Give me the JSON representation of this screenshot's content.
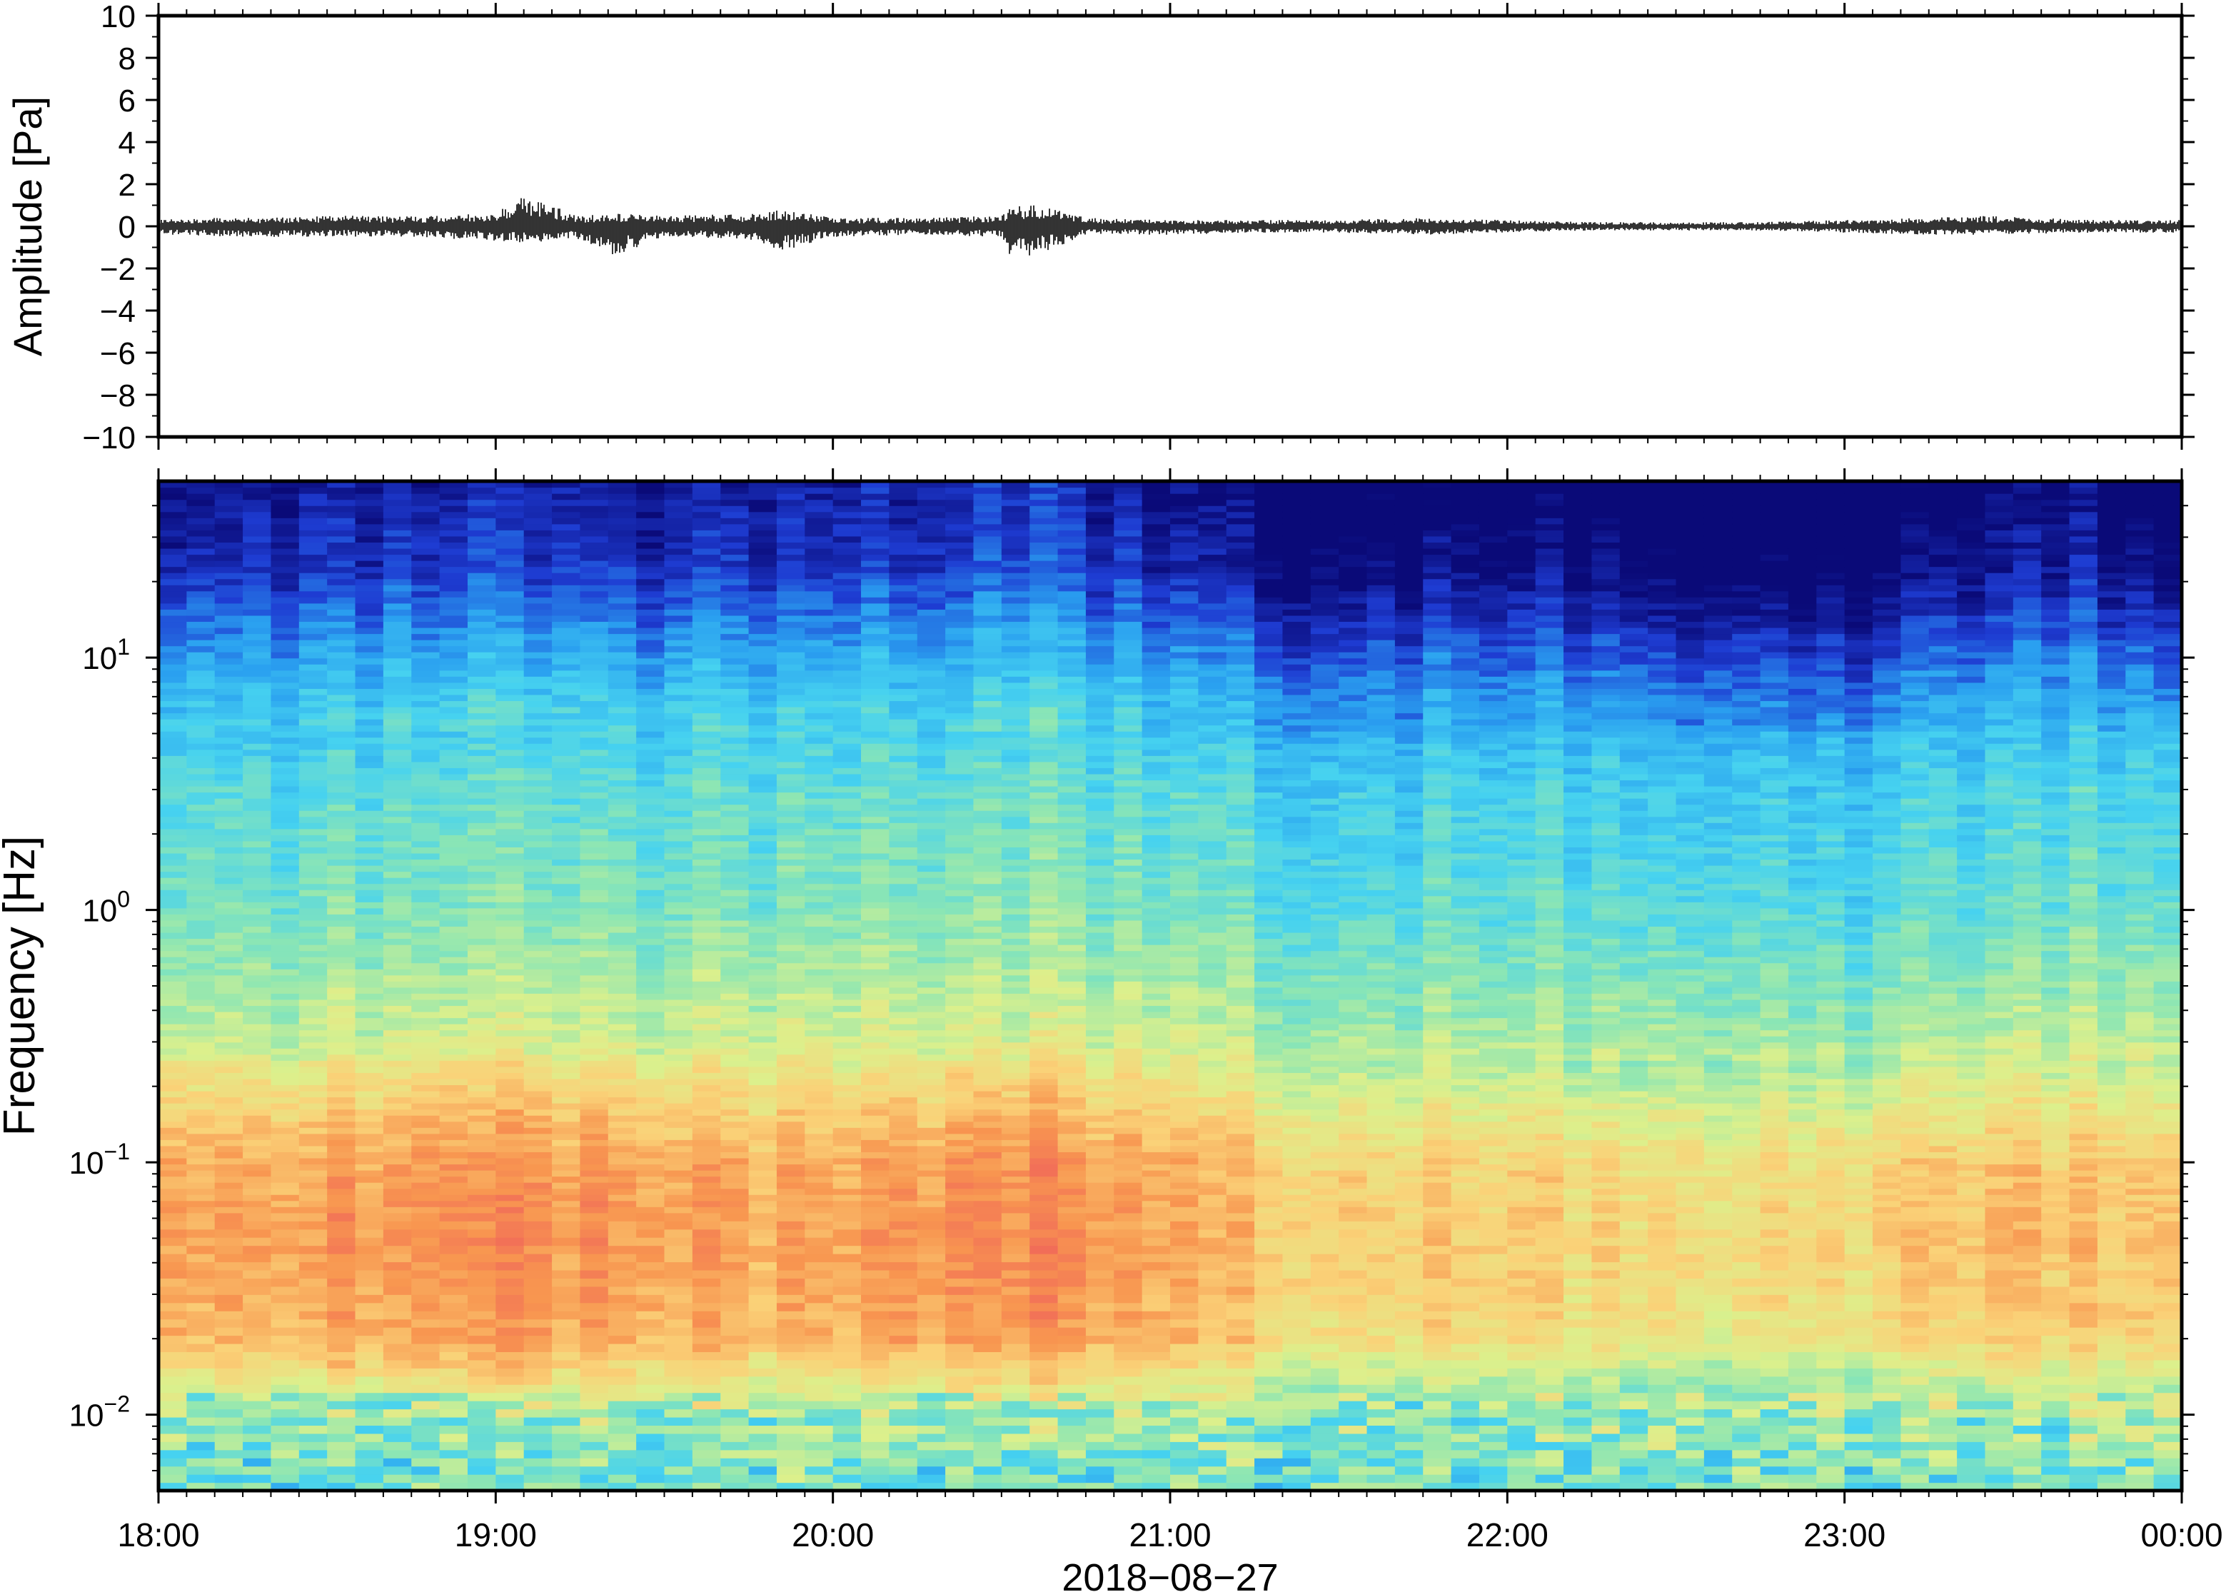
{
  "figure": {
    "date_label": "2018−08−27"
  },
  "chart_data": [
    {
      "type": "line",
      "panel": "waveform",
      "ylabel": "Amplitude [Pa]",
      "ylim": [
        -10,
        10
      ],
      "yticks": [
        -10,
        -8,
        -6,
        -4,
        -2,
        0,
        2,
        4,
        6,
        8,
        10
      ],
      "ytick_labels": [
        "−10",
        "−8",
        "−6",
        "−4",
        "−2",
        "0",
        "2",
        "4",
        "6",
        "8",
        "10"
      ],
      "xlim_hours": [
        18,
        24
      ],
      "trace_color": "#000000",
      "series": [
        {
          "x_hours": [
            18.0,
            18.25,
            18.5,
            18.75,
            19.0,
            19.08,
            19.25,
            19.35,
            19.5,
            19.75,
            19.85,
            20.0,
            20.25,
            20.5,
            20.53,
            20.6,
            20.75,
            21.0,
            21.25,
            21.5,
            21.75,
            22.0,
            22.25,
            22.5,
            22.75,
            23.0,
            23.25,
            23.4,
            23.75,
            24.0
          ],
          "max_pa": [
            0.4,
            0.4,
            0.5,
            0.5,
            0.6,
            1.5,
            0.5,
            0.6,
            0.5,
            0.6,
            0.8,
            0.4,
            0.4,
            0.5,
            0.9,
            1.1,
            0.4,
            0.3,
            0.3,
            0.3,
            0.4,
            0.3,
            0.2,
            0.2,
            0.2,
            0.3,
            0.4,
            0.5,
            0.3,
            0.3
          ],
          "min_pa": [
            -0.4,
            -0.5,
            -0.5,
            -0.5,
            -0.7,
            -0.8,
            -0.6,
            -1.4,
            -0.5,
            -0.6,
            -1.2,
            -0.5,
            -0.4,
            -0.5,
            -1.7,
            -1.4,
            -0.4,
            -0.4,
            -0.3,
            -0.3,
            -0.4,
            -0.3,
            -0.2,
            -0.2,
            -0.2,
            -0.3,
            -0.4,
            -0.4,
            -0.3,
            -0.3
          ]
        }
      ]
    },
    {
      "type": "heatmap",
      "panel": "spectrogram",
      "ylabel": "Frequency [Hz]",
      "yscale": "log",
      "ylim": [
        0.005,
        50
      ],
      "yticks": [
        0.01,
        0.1,
        1,
        10
      ],
      "ytick_base": [
        "10",
        "10",
        "10",
        "10"
      ],
      "ytick_exponents": [
        "−2",
        "−1",
        "0",
        "1"
      ],
      "xlim_hours": [
        18,
        24
      ],
      "xticks_hours": [
        18,
        19,
        20,
        21,
        22,
        23,
        24
      ],
      "xtick_labels": [
        "18:00",
        "19:00",
        "20:00",
        "21:00",
        "22:00",
        "23:00",
        "00:00"
      ],
      "colormap": [
        "#0a0a78",
        "#1e3cd2",
        "#2aa0f0",
        "#46d2f0",
        "#8ce6b4",
        "#dcf08c",
        "#fad278",
        "#f89650",
        "#f0645a"
      ],
      "columns_per_hour": 12,
      "activity_by_hour": [
        {
          "hour": 18,
          "level": 0.75
        },
        {
          "hour": 19,
          "level": 0.85
        },
        {
          "hour": 20,
          "level": 0.72
        },
        {
          "hour": 20.6,
          "level": 0.88
        },
        {
          "hour": 21,
          "level": 0.7
        },
        {
          "hour": 21.5,
          "level": 0.6
        },
        {
          "hour": 22,
          "level": 0.62
        },
        {
          "hour": 22.5,
          "level": 0.5
        },
        {
          "hour": 23,
          "level": 0.55
        },
        {
          "hour": 23.5,
          "level": 0.68
        },
        {
          "hour": 24,
          "level": 0.55
        }
      ]
    }
  ]
}
